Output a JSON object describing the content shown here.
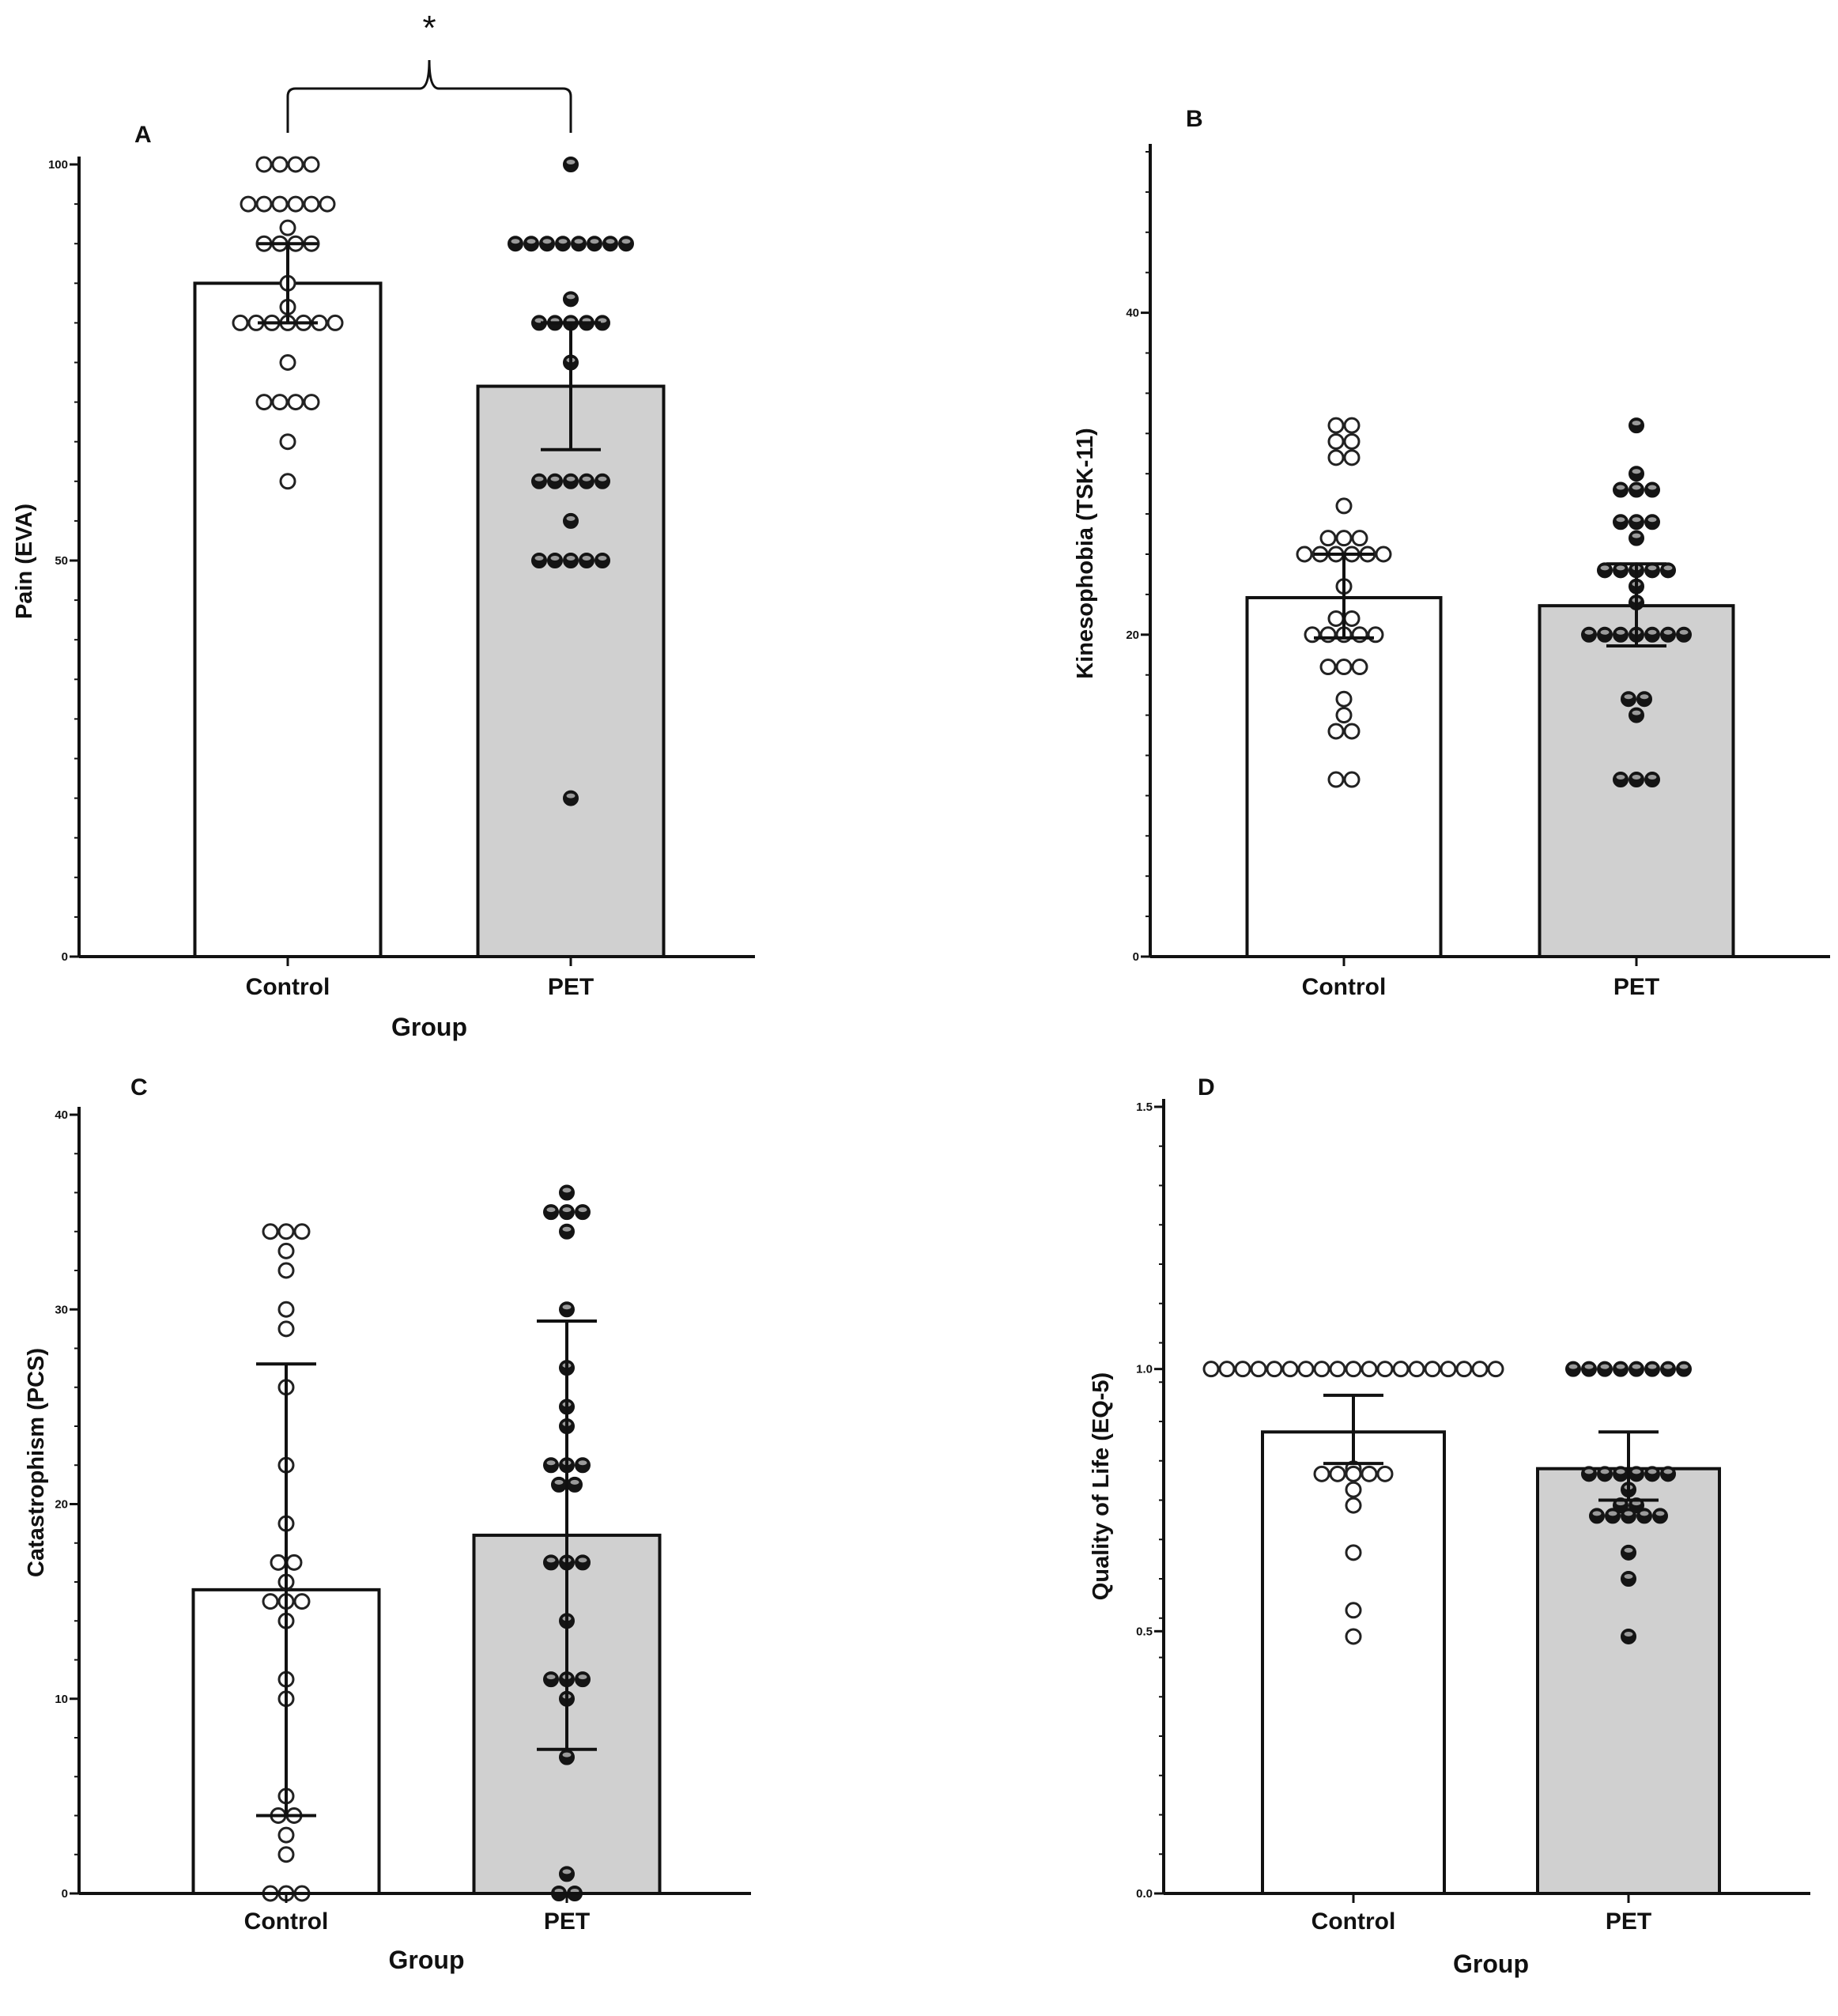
{
  "figure": {
    "significance_marker": "*"
  },
  "chart_data": [
    {
      "type": "bar",
      "panel": "A",
      "title": "A",
      "categories": [
        "Control",
        "PET"
      ],
      "xlabel": "Group",
      "ylabel": "Pain (EVA)",
      "ylim": [
        0,
        100
      ],
      "ytick_values": [
        0,
        50,
        100
      ],
      "yticks": [
        "0",
        "50",
        "100"
      ],
      "grid": false,
      "series": [
        {
          "name": "Control",
          "mean": 85,
          "err_low": 80,
          "err_high": 90,
          "style": "open",
          "points": [
            100,
            100,
            100,
            100,
            95,
            95,
            95,
            95,
            95,
            95,
            92,
            90,
            90,
            90,
            90,
            85,
            82,
            80,
            80,
            80,
            80,
            80,
            80,
            80,
            75,
            70,
            70,
            70,
            70,
            65,
            60
          ]
        },
        {
          "name": "PET",
          "mean": 72,
          "err_low": 64,
          "err_high": 80,
          "style": "filled",
          "points": [
            100,
            90,
            90,
            90,
            90,
            90,
            90,
            90,
            90,
            83,
            80,
            80,
            80,
            80,
            80,
            75,
            60,
            60,
            60,
            60,
            60,
            55,
            50,
            50,
            50,
            50,
            50,
            20
          ]
        }
      ],
      "significance": {
        "between": [
          "Control",
          "PET"
        ],
        "label": "*"
      }
    },
    {
      "type": "bar",
      "panel": "B",
      "title": "B",
      "categories": [
        "Control",
        "PET"
      ],
      "xlabel": "",
      "ylabel": "Kinesophobia (TSK-11)",
      "ylim": [
        0,
        50
      ],
      "ytick_values": [
        0,
        20,
        40
      ],
      "yticks": [
        "0",
        "20",
        "40"
      ],
      "grid": false,
      "series": [
        {
          "name": "Control",
          "mean": 22.3,
          "err_low": 19.8,
          "err_high": 25,
          "style": "open",
          "points": [
            33,
            33,
            32,
            32,
            31,
            31,
            28,
            26,
            26,
            26,
            25,
            25,
            25,
            25,
            25,
            25,
            23,
            21,
            21,
            20,
            20,
            20,
            20,
            20,
            18,
            18,
            18,
            16,
            15,
            14,
            14,
            11,
            11
          ]
        },
        {
          "name": "PET",
          "mean": 21.8,
          "err_low": 19.3,
          "err_high": 24.4,
          "style": "filled",
          "points": [
            33,
            30,
            29,
            29,
            29,
            27,
            27,
            27,
            26,
            24,
            24,
            24,
            24,
            24,
            23,
            22,
            20,
            20,
            20,
            20,
            20,
            20,
            20,
            16,
            16,
            15,
            11,
            11,
            11
          ]
        }
      ]
    },
    {
      "type": "bar",
      "panel": "C",
      "title": "C",
      "categories": [
        "Control",
        "PET"
      ],
      "xlabel": "Group",
      "ylabel": "Catastrophism (PCS)",
      "ylim": [
        0,
        40
      ],
      "ytick_values": [
        0,
        10,
        20,
        30,
        40
      ],
      "yticks": [
        "0",
        "10",
        "20",
        "30",
        "40"
      ],
      "grid": false,
      "series": [
        {
          "name": "Control",
          "mean": 15.6,
          "err_low": 4,
          "err_high": 27.2,
          "style": "open",
          "points": [
            34,
            34,
            34,
            33,
            32,
            30,
            29,
            26,
            22,
            19,
            17,
            17,
            16,
            15,
            15,
            15,
            14,
            11,
            10,
            5,
            4,
            4,
            3,
            2,
            0,
            0,
            0
          ]
        },
        {
          "name": "PET",
          "mean": 18.4,
          "err_low": 7.4,
          "err_high": 29.4,
          "style": "filled",
          "points": [
            36,
            35,
            35,
            35,
            34,
            30,
            27,
            25,
            24,
            22,
            22,
            22,
            21,
            21,
            17,
            17,
            17,
            14,
            11,
            11,
            11,
            10,
            7,
            1,
            0,
            0
          ]
        }
      ]
    },
    {
      "type": "bar",
      "panel": "D",
      "title": "D",
      "categories": [
        "Control",
        "PET"
      ],
      "xlabel": "Group",
      "ylabel": "Quality of Life (EQ-5)",
      "ylim": [
        0,
        1.5
      ],
      "ytick_values": [
        0,
        0.5,
        1,
        1.5
      ],
      "yticks": [
        "0.0",
        "0.5",
        "1.0",
        "1.5"
      ],
      "grid": false,
      "series": [
        {
          "name": "Control",
          "mean": 0.88,
          "err_low": 0.82,
          "err_high": 0.95,
          "style": "open",
          "points": [
            1,
            1,
            1,
            1,
            1,
            1,
            1,
            1,
            1,
            1,
            1,
            1,
            1,
            1,
            1,
            1,
            1,
            1,
            1,
            0.81,
            0.8,
            0.8,
            0.8,
            0.8,
            0.8,
            0.77,
            0.74,
            0.65,
            0.54,
            0.49
          ]
        },
        {
          "name": "PET",
          "mean": 0.81,
          "err_low": 0.75,
          "err_high": 0.88,
          "style": "filled",
          "points": [
            1,
            1,
            1,
            1,
            1,
            1,
            1,
            1,
            0.8,
            0.8,
            0.8,
            0.8,
            0.8,
            0.8,
            0.77,
            0.74,
            0.74,
            0.72,
            0.72,
            0.72,
            0.72,
            0.72,
            0.65,
            0.6,
            0.49
          ]
        }
      ]
    }
  ]
}
